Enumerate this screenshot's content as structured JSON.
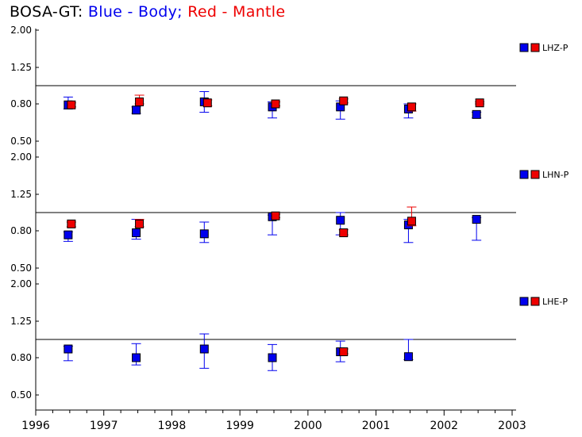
{
  "title": {
    "prefix": "BOSA-GT:",
    "blue_part": "Blue - Body;",
    "red_part": "Red - Mantle"
  },
  "colors": {
    "body": "#0000ee",
    "mantle": "#ee0000",
    "axis": "#000000"
  },
  "chart_data": {
    "type": "scatter",
    "x_ticks": [
      "1996",
      "1997",
      "1998",
      "1999",
      "2000",
      "2001",
      "2002",
      "2003"
    ],
    "xlim": [
      1996,
      2003
    ],
    "y_ticks": [
      "0.50",
      "0.80",
      "1.25",
      "2.00"
    ],
    "y_scale": "log",
    "ylim": [
      0.43,
      2.1
    ],
    "reference_line": 1.0,
    "grid": false,
    "legend_placement": "right",
    "panels": [
      {
        "label": "LHZ-P",
        "series": [
          {
            "name": "Blue",
            "role": "body",
            "points": [
              {
                "x": 1996.5,
                "y": 0.79,
                "lo": 0.75,
                "hi": 0.87
              },
              {
                "x": 1997.5,
                "y": 0.74,
                "lo": 0.71,
                "hi": 0.77
              },
              {
                "x": 1998.5,
                "y": 0.82,
                "lo": 0.72,
                "hi": 0.93
              },
              {
                "x": 1999.5,
                "y": 0.77,
                "lo": 0.67,
                "hi": 0.82
              },
              {
                "x": 2000.5,
                "y": 0.77,
                "lo": 0.66,
                "hi": 0.83
              },
              {
                "x": 2001.5,
                "y": 0.75,
                "lo": 0.67,
                "hi": 0.8
              },
              {
                "x": 2002.5,
                "y": 0.7,
                "lo": 0.67,
                "hi": 0.72
              }
            ]
          },
          {
            "name": "Red",
            "role": "mantle",
            "points": [
              {
                "x": 1996.5,
                "y": 0.79,
                "lo": 0.77,
                "hi": 0.81
              },
              {
                "x": 1997.5,
                "y": 0.82,
                "lo": 0.8,
                "hi": 0.89
              },
              {
                "x": 1998.5,
                "y": 0.81,
                "lo": 0.78,
                "hi": 0.84
              },
              {
                "x": 1999.5,
                "y": 0.8,
                "lo": 0.78,
                "hi": 0.82
              },
              {
                "x": 2000.5,
                "y": 0.83,
                "lo": 0.81,
                "hi": 0.85
              },
              {
                "x": 2001.5,
                "y": 0.77,
                "lo": 0.73,
                "hi": 0.8
              },
              {
                "x": 2002.5,
                "y": 0.81,
                "lo": 0.8,
                "hi": 0.82
              }
            ]
          }
        ]
      },
      {
        "label": "LHN-P",
        "series": [
          {
            "name": "Blue",
            "role": "body",
            "points": [
              {
                "x": 1996.5,
                "y": 0.76,
                "lo": 0.7,
                "hi": 0.79
              },
              {
                "x": 1997.5,
                "y": 0.78,
                "lo": 0.72,
                "hi": 0.92
              },
              {
                "x": 1998.5,
                "y": 0.77,
                "lo": 0.69,
                "hi": 0.89
              },
              {
                "x": 1999.5,
                "y": 0.95,
                "lo": 0.76,
                "hi": 0.97
              },
              {
                "x": 2000.5,
                "y": 0.91,
                "lo": 0.76,
                "hi": 1.0
              },
              {
                "x": 2001.5,
                "y": 0.86,
                "lo": 0.69,
                "hi": 0.92
              },
              {
                "x": 2002.5,
                "y": 0.92,
                "lo": 0.71,
                "hi": 0.94
              }
            ]
          },
          {
            "name": "Red",
            "role": "mantle",
            "points": [
              {
                "x": 1996.5,
                "y": 0.87,
                "lo": 0.84,
                "hi": 0.89
              },
              {
                "x": 1997.5,
                "y": 0.87,
                "lo": 0.84,
                "hi": 0.92
              },
              {
                "x": 1999.5,
                "y": 0.96,
                "lo": 0.94,
                "hi": 0.98
              },
              {
                "x": 2000.5,
                "y": 0.78,
                "lo": 0.76,
                "hi": 0.81
              },
              {
                "x": 2001.5,
                "y": 0.9,
                "lo": 0.85,
                "hi": 1.07
              }
            ]
          }
        ]
      },
      {
        "label": "LHE-P",
        "series": [
          {
            "name": "Blue",
            "role": "body",
            "points": [
              {
                "x": 1996.5,
                "y": 0.89,
                "lo": 0.77,
                "hi": 0.92
              },
              {
                "x": 1997.5,
                "y": 0.8,
                "lo": 0.73,
                "hi": 0.95
              },
              {
                "x": 1998.5,
                "y": 0.89,
                "lo": 0.7,
                "hi": 1.07
              },
              {
                "x": 1999.5,
                "y": 0.8,
                "lo": 0.68,
                "hi": 0.94
              },
              {
                "x": 2000.5,
                "y": 0.86,
                "lo": 0.76,
                "hi": 0.98
              },
              {
                "x": 2001.5,
                "y": 0.81,
                "lo": 0.78,
                "hi": 1.0
              }
            ]
          },
          {
            "name": "Red",
            "role": "mantle",
            "points": [
              {
                "x": 2000.5,
                "y": 0.86,
                "lo": 0.84,
                "hi": 0.89
              }
            ]
          }
        ]
      }
    ]
  }
}
